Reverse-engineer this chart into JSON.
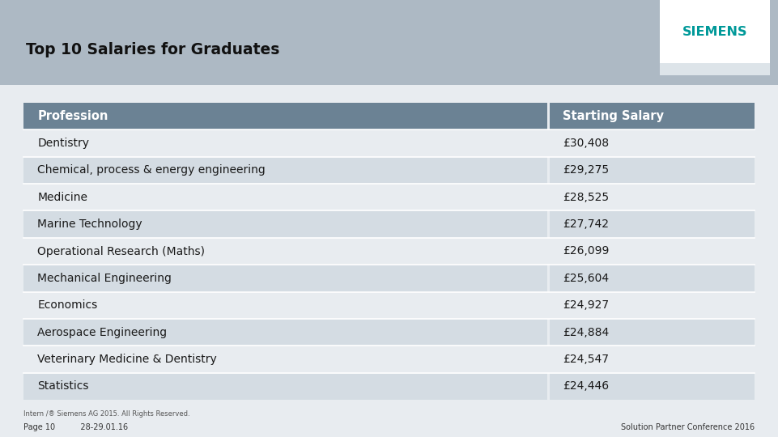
{
  "title": "Top 10 Salaries for Graduates",
  "header": [
    "Profession",
    "Starting Salary"
  ],
  "rows": [
    [
      "Dentistry",
      "£30,408"
    ],
    [
      "Chemical, process & energy engineering",
      "£29,275"
    ],
    [
      "Medicine",
      "£28,525"
    ],
    [
      "Marine Technology",
      "£27,742"
    ],
    [
      "Operational Research (Maths)",
      "£26,099"
    ],
    [
      "Mechanical Engineering",
      "£25,604"
    ],
    [
      "Economics",
      "£24,927"
    ],
    [
      "Aerospace Engineering",
      "£24,884"
    ],
    [
      "Veterinary Medicine & Dentistry",
      "£24,547"
    ],
    [
      "Statistics",
      "£24,446"
    ]
  ],
  "bg_color": "#adb9c4",
  "header_bg": "#6b8294",
  "header_text_color": "#ffffff",
  "row_odd_bg": "#d4dce3",
  "row_even_bg": "#e8ecf0",
  "text_color": "#1a1a1a",
  "title_color": "#111111",
  "title_bg": "#adb9c4",
  "siemens_text_color": "#009999",
  "siemens_bar_color": "#c8d4db",
  "footer_left1": "Intern /® Siemens AG 2015. All Rights Reserved.",
  "footer_left2": "Page 10          28-29.01.16",
  "footer_right": "Solution Partner Conference 2016",
  "col_split": 0.705
}
